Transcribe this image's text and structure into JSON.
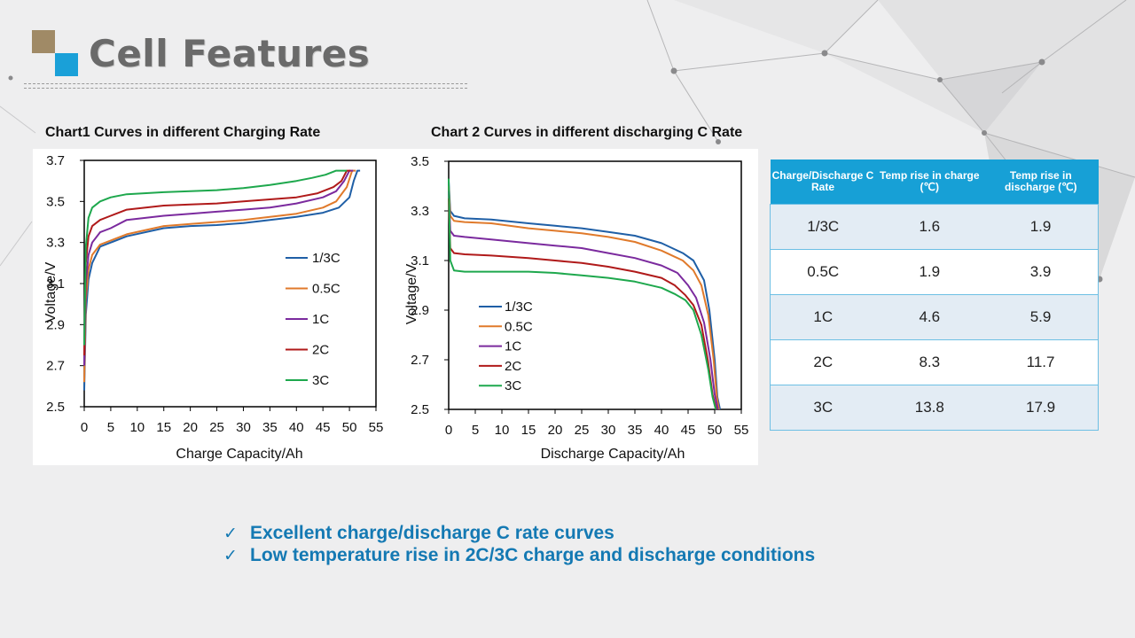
{
  "page": {
    "title": "Cell Features"
  },
  "colors": {
    "1/3C": "#1f5fa6",
    "0.5C": "#e07a2b",
    "1C": "#7b2a9e",
    "2C": "#b01a1a",
    "3C": "#1ea84d",
    "accent_blue": "#17a0d6",
    "logo_brown": "#a08a66"
  },
  "chart_data": [
    {
      "type": "line",
      "title": "Chart1  Curves in different Charging Rate",
      "xlabel": "Charge Capacity/Ah",
      "ylabel": "Voltage/V",
      "xlim": [
        0,
        55
      ],
      "ylim": [
        2.5,
        3.7
      ],
      "xticks": [
        0,
        5,
        10,
        15,
        20,
        25,
        30,
        35,
        40,
        45,
        50,
        55
      ],
      "yticks": [
        2.5,
        2.7,
        2.9,
        3.1,
        3.3,
        3.5,
        3.7
      ],
      "tick_labels_y": [
        "2.5",
        "2.7",
        "2.9",
        "3.1",
        "3.3",
        "3.5",
        "3.7"
      ],
      "legend": "right",
      "grid": false,
      "series": [
        {
          "name": "1/3C",
          "x": [
            0,
            0.3,
            0.8,
            1.5,
            3,
            5,
            8,
            15,
            20,
            25,
            30,
            35,
            40,
            45,
            48,
            50,
            50.8,
            51.5,
            52
          ],
          "y": [
            2.58,
            2.95,
            3.12,
            3.2,
            3.28,
            3.3,
            3.33,
            3.37,
            3.38,
            3.385,
            3.395,
            3.41,
            3.425,
            3.445,
            3.47,
            3.52,
            3.6,
            3.65,
            3.65
          ]
        },
        {
          "name": "0.5C",
          "x": [
            0,
            0.3,
            0.8,
            1.5,
            3,
            5,
            8,
            15,
            20,
            25,
            30,
            35,
            40,
            45,
            47.5,
            49.5,
            50.5,
            51.2
          ],
          "y": [
            2.62,
            3.02,
            3.17,
            3.24,
            3.29,
            3.31,
            3.34,
            3.38,
            3.39,
            3.4,
            3.41,
            3.425,
            3.44,
            3.47,
            3.5,
            3.57,
            3.65,
            3.65
          ]
        },
        {
          "name": "1C",
          "x": [
            0,
            0.3,
            0.8,
            1.5,
            3,
            5,
            8,
            15,
            20,
            25,
            30,
            35,
            40,
            45,
            47.5,
            49,
            50,
            50.7
          ],
          "y": [
            2.7,
            3.1,
            3.24,
            3.3,
            3.35,
            3.37,
            3.41,
            3.43,
            3.44,
            3.45,
            3.46,
            3.47,
            3.49,
            3.52,
            3.55,
            3.6,
            3.65,
            3.65
          ]
        },
        {
          "name": "2C",
          "x": [
            0,
            0.3,
            0.8,
            1.5,
            3,
            5,
            8,
            15,
            20,
            25,
            30,
            35,
            40,
            44,
            47,
            48.5,
            49.5,
            50.2
          ],
          "y": [
            2.75,
            3.2,
            3.33,
            3.38,
            3.41,
            3.43,
            3.46,
            3.48,
            3.485,
            3.49,
            3.5,
            3.51,
            3.52,
            3.54,
            3.57,
            3.6,
            3.65,
            3.65
          ]
        },
        {
          "name": "3C",
          "x": [
            0,
            0.3,
            0.8,
            1.5,
            3,
            5,
            8,
            15,
            20,
            25,
            30,
            35,
            40,
            43,
            45.5,
            47.5,
            48.5,
            49.5
          ],
          "y": [
            2.8,
            3.28,
            3.42,
            3.47,
            3.5,
            3.52,
            3.535,
            3.545,
            3.55,
            3.555,
            3.565,
            3.58,
            3.6,
            3.615,
            3.63,
            3.65,
            3.65,
            3.65
          ]
        }
      ]
    },
    {
      "type": "line",
      "title": "Chart 2  Curves in different discharging C Rate",
      "xlabel": "Discharge Capacity/Ah",
      "ylabel": "Voltage/V",
      "xlim": [
        0,
        55
      ],
      "ylim": [
        2.5,
        3.5
      ],
      "xticks": [
        0,
        5,
        10,
        15,
        20,
        25,
        30,
        35,
        40,
        45,
        50,
        55
      ],
      "yticks": [
        2.5,
        2.7,
        2.9,
        3.1,
        3.3,
        3.5
      ],
      "tick_labels_y": [
        "2.5",
        "2.7",
        "2.9",
        "3.1",
        "3.3",
        "3.5"
      ],
      "legend": "bottom-left",
      "grid": false,
      "series": [
        {
          "name": "1/3C",
          "x": [
            0,
            0.3,
            1,
            3,
            8,
            15,
            20,
            25,
            30,
            35,
            40,
            44,
            46,
            48,
            49,
            50,
            50.5,
            51
          ],
          "y": [
            3.42,
            3.3,
            3.28,
            3.27,
            3.265,
            3.25,
            3.24,
            3.23,
            3.215,
            3.2,
            3.17,
            3.13,
            3.1,
            3.02,
            2.9,
            2.7,
            2.55,
            2.5
          ]
        },
        {
          "name": "0.5C",
          "x": [
            0,
            0.3,
            1,
            3,
            8,
            15,
            20,
            25,
            30,
            35,
            40,
            44,
            46,
            47.5,
            48.8,
            49.8,
            50.4,
            50.8
          ],
          "y": [
            3.4,
            3.28,
            3.26,
            3.255,
            3.25,
            3.23,
            3.22,
            3.21,
            3.195,
            3.175,
            3.14,
            3.1,
            3.06,
            3.0,
            2.88,
            2.7,
            2.55,
            2.5
          ]
        },
        {
          "name": "1C",
          "x": [
            0,
            0.3,
            1,
            3,
            8,
            15,
            20,
            25,
            30,
            35,
            40,
            43,
            45,
            46.5,
            48,
            49.2,
            50,
            50.6
          ],
          "y": [
            3.38,
            3.22,
            3.2,
            3.195,
            3.185,
            3.17,
            3.16,
            3.15,
            3.13,
            3.11,
            3.08,
            3.05,
            3.0,
            2.95,
            2.85,
            2.7,
            2.56,
            2.5
          ]
        },
        {
          "name": "2C",
          "x": [
            0,
            0.3,
            1,
            3,
            8,
            15,
            20,
            25,
            30,
            35,
            40,
            42.5,
            44.5,
            46,
            47.5,
            48.7,
            49.6,
            50.3
          ],
          "y": [
            3.35,
            3.15,
            3.13,
            3.125,
            3.12,
            3.11,
            3.1,
            3.09,
            3.075,
            3.055,
            3.03,
            3.0,
            2.96,
            2.92,
            2.84,
            2.7,
            2.56,
            2.5
          ]
        },
        {
          "name": "3C",
          "x": [
            0,
            0.3,
            1,
            3,
            8,
            15,
            20,
            25,
            30,
            35,
            40,
            42.5,
            44.5,
            46,
            47.5,
            48.8,
            49.6,
            50.2
          ],
          "y": [
            3.43,
            3.1,
            3.06,
            3.055,
            3.055,
            3.055,
            3.05,
            3.04,
            3.03,
            3.015,
            2.99,
            2.965,
            2.94,
            2.9,
            2.8,
            2.66,
            2.55,
            2.5
          ]
        }
      ]
    }
  ],
  "table": {
    "headers": [
      "Charge/Discharge C Rate",
      "Temp rise in charge (℃)",
      "Temp rise in discharge  (℃)"
    ],
    "rows": [
      [
        "1/3C",
        "1.6",
        "1.9"
      ],
      [
        "0.5C",
        "1.9",
        "3.9"
      ],
      [
        "1C",
        "4.6",
        "5.9"
      ],
      [
        "2C",
        "8.3",
        "11.7"
      ],
      [
        "3C",
        "13.8",
        "17.9"
      ]
    ]
  },
  "bullets": [
    {
      "check": "✓",
      "text": "Excellent charge/discharge  C rate curves"
    },
    {
      "check": "✓",
      "text": "Low temperature rise in 2C/3C charge and discharge conditions"
    }
  ]
}
